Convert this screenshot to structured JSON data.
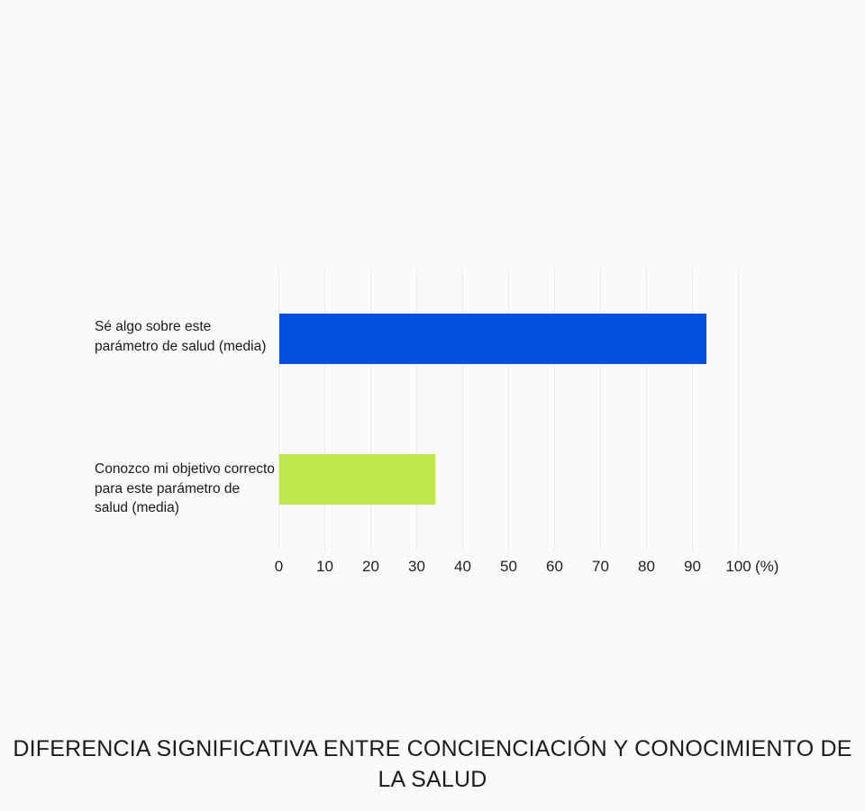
{
  "background_color": "#FAFAFA",
  "chart_data": {
    "type": "bar",
    "orientation": "horizontal",
    "title": "DIFERENCIA SIGNIFICATIVA ENTRE CONCIENCIACIÓN Y CONOCIMIENTO DE LA SALUD",
    "categories": [
      "Sé algo sobre este parámetro de salud (media)",
      "Conozco mi objetivo correcto para este parámetro de salud (media)"
    ],
    "category_lines": [
      [
        "Sé algo sobre este",
        "parámetro de salud (media)"
      ],
      [
        "Conozco mi objetivo correcto",
        "para este parámetro de",
        "salud (media)"
      ]
    ],
    "values": [
      93,
      34
    ],
    "bar_colors": [
      "#0550DC",
      "#BDE74C"
    ],
    "xlabel": "(%)",
    "x_unit_label": "(%)",
    "xlim": [
      0,
      100
    ],
    "xticks": [
      0,
      10,
      20,
      30,
      40,
      50,
      60,
      70,
      80,
      90,
      100
    ],
    "grid": true,
    "gridline_color": "#EBEBEB",
    "legend": "none",
    "title_position": "bottom"
  }
}
